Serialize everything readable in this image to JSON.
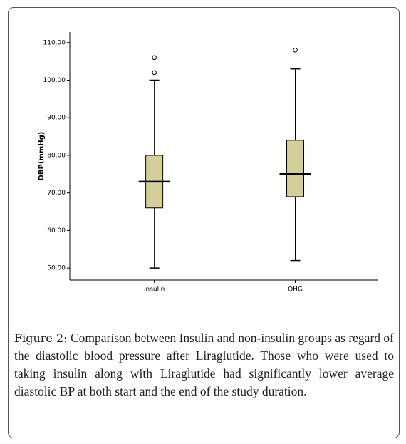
{
  "chart_data": {
    "type": "box",
    "y_label": "DBP(mmHg)",
    "categories": [
      "insulin",
      "OHG"
    ],
    "boxes": [
      {
        "min": 50,
        "q1": 66,
        "median": 73,
        "q3": 80,
        "max": 100,
        "outliers": [
          102,
          106
        ]
      },
      {
        "min": 52,
        "q1": 69,
        "median": 75,
        "q3": 84,
        "max": 103,
        "outliers": [
          108
        ]
      }
    ],
    "color": "#d4cf98",
    "ylim": [
      46.8,
      112.8
    ],
    "yticks": [
      {
        "value": 50,
        "label": "50.00"
      },
      {
        "value": 60,
        "label": "60.00"
      },
      {
        "value": 70,
        "label": "70.00"
      },
      {
        "value": 80,
        "label": "80.00"
      },
      {
        "value": 90,
        "label": "90.00"
      },
      {
        "value": 100,
        "label": "100.00"
      },
      {
        "value": 110,
        "label": "110.00"
      }
    ]
  },
  "caption": {
    "label": "Figure 2:",
    "text": "Comparison between Insulin and non-insulin groups as regard of the diastolic blood pressure after Liraglutide. Those who were used to taking insulin along with Liraglutide had significantly lower average diastolic BP at both start and the end of the study duration."
  }
}
